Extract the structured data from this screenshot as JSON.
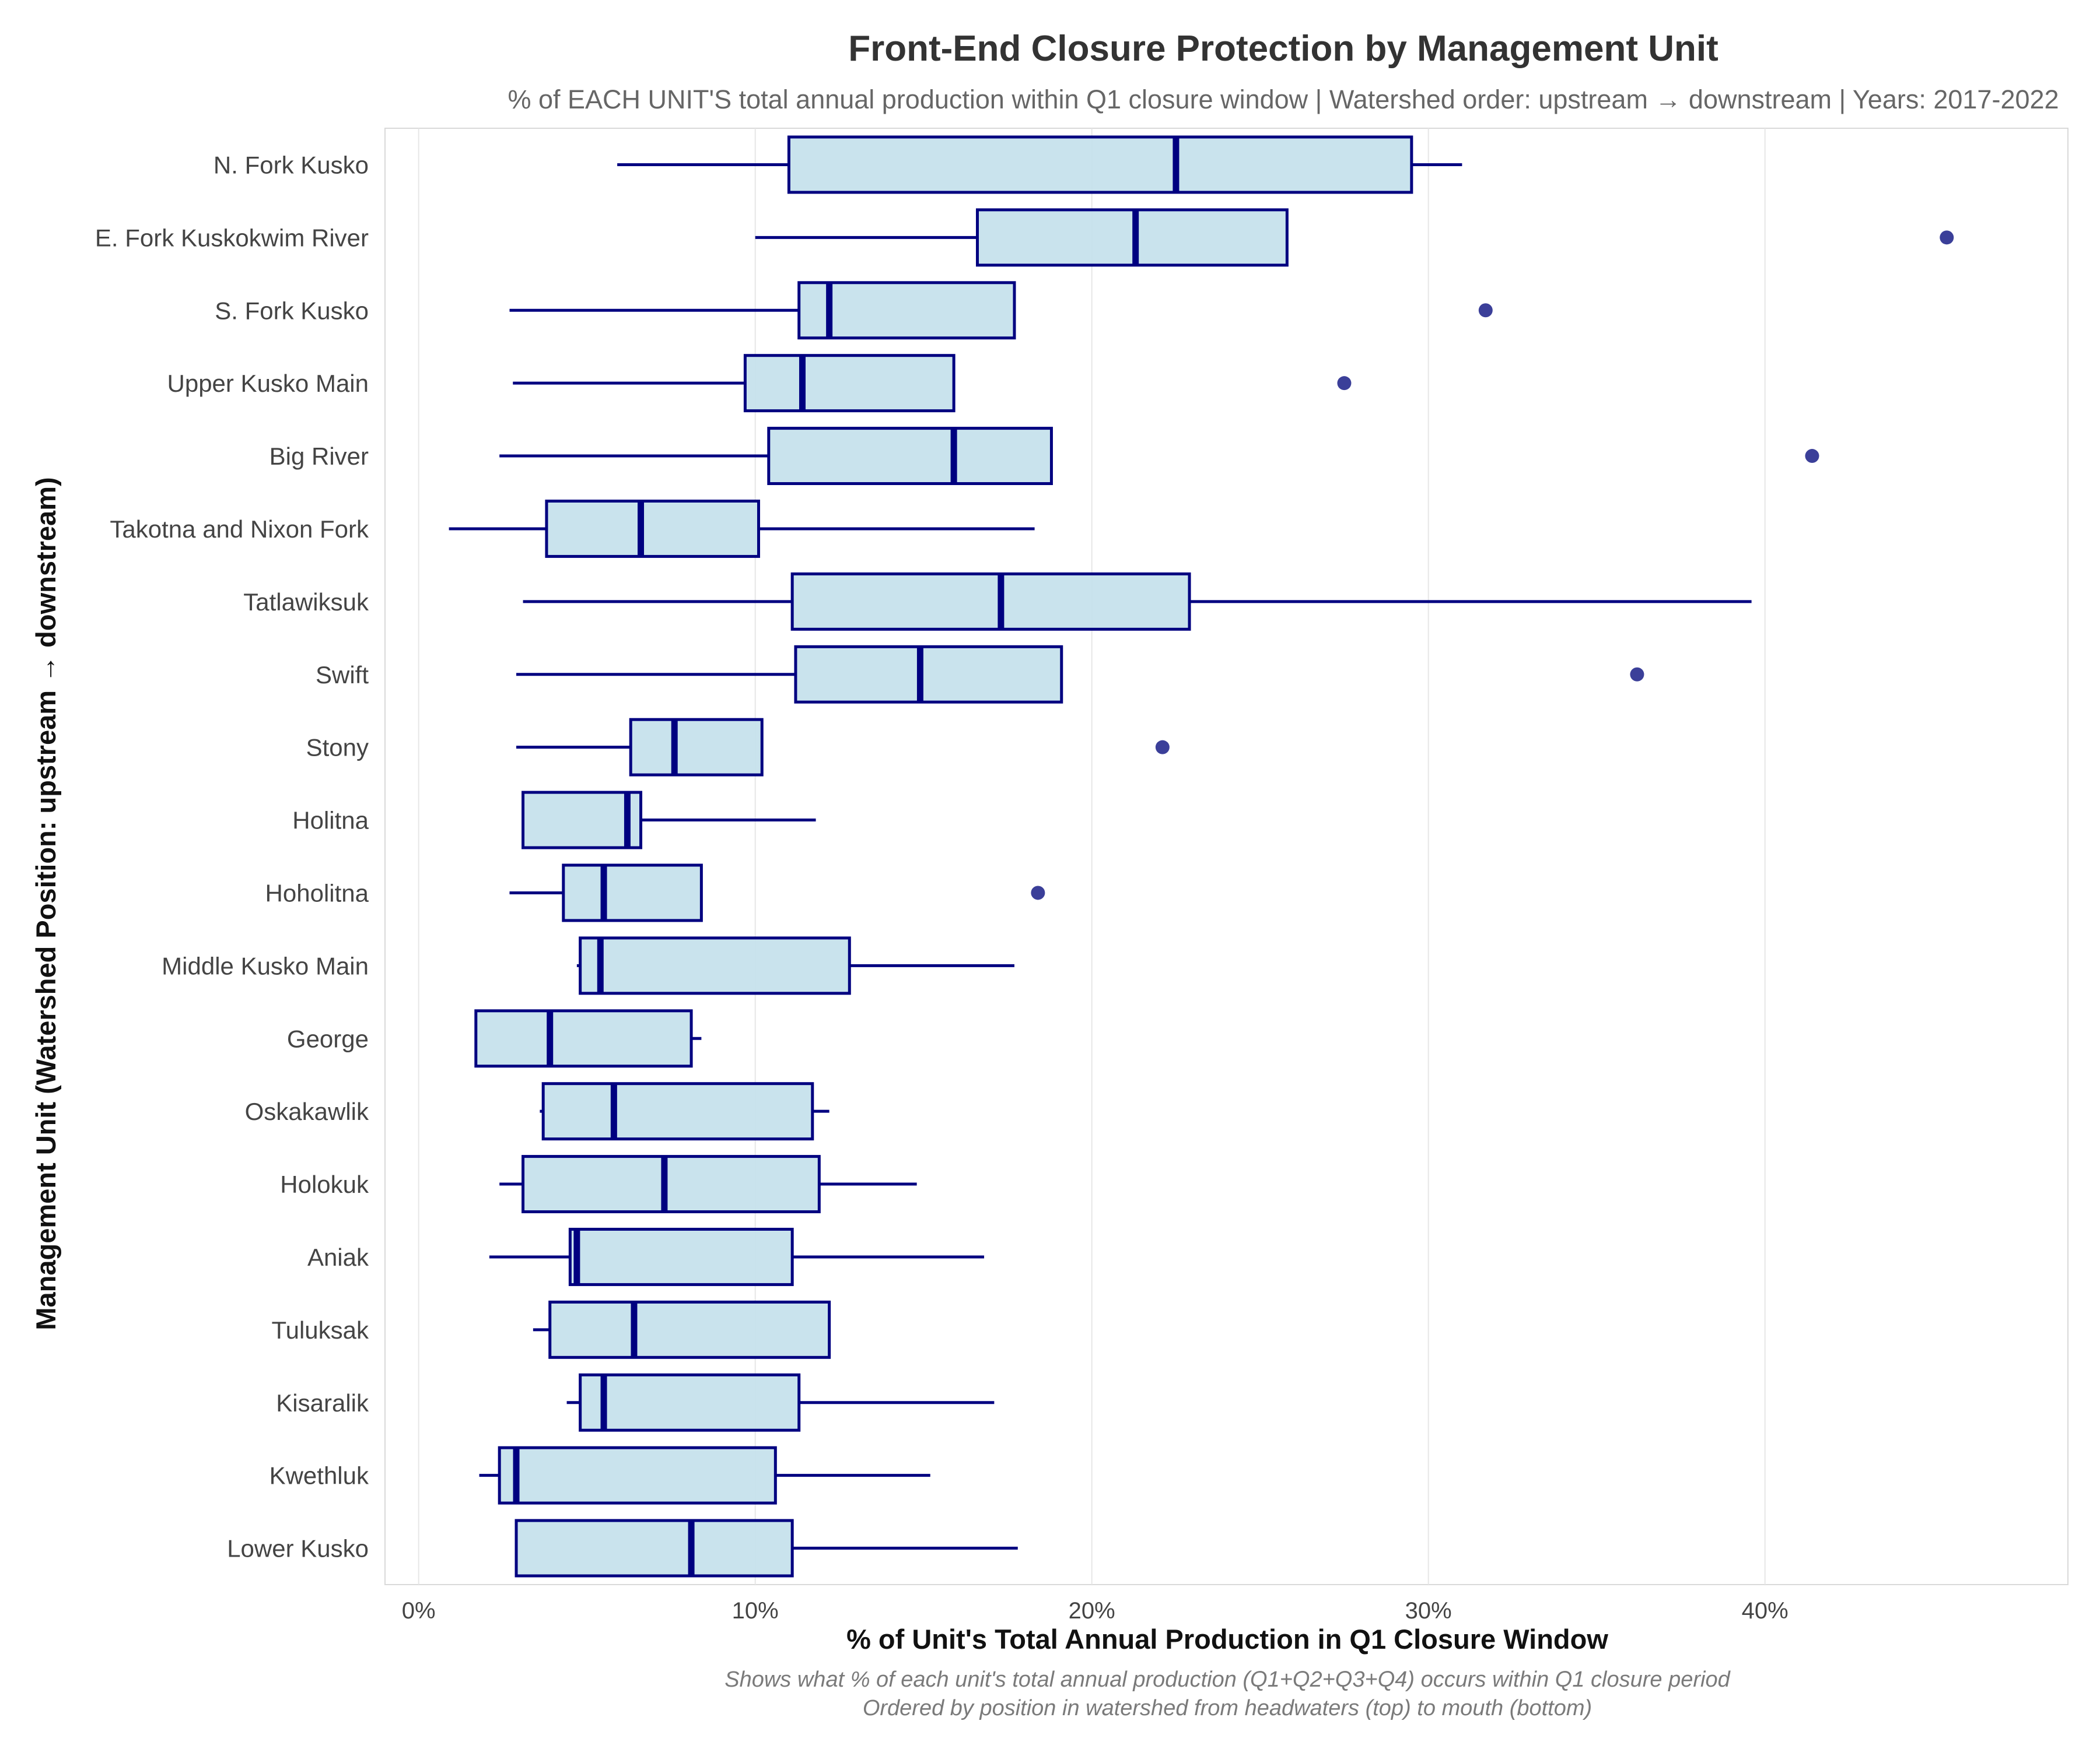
{
  "chart_data": {
    "type": "boxplot",
    "orientation": "horizontal",
    "title": "Front-End Closure Protection by Management Unit",
    "subtitle": "% of EACH UNIT'S total annual production within Q1 closure window | Watershed order: upstream → downstream | Years: 2017-2022",
    "xlabel": "% of Unit's Total Annual Production in Q1 Closure Window",
    "ylabel": "Management Unit (Watershed Position: upstream → downstream)",
    "caption_lines": [
      "Shows what % of each unit's total annual production (Q1+Q2+Q3+Q4) occurs within Q1 closure period",
      "Ordered by position in watershed from headwaters (top) to mouth (bottom)"
    ],
    "xlim": [
      -1,
      49
    ],
    "x_ticks": [
      0,
      10,
      20,
      30,
      40
    ],
    "x_tick_labels": [
      "0%",
      "10%",
      "20%",
      "30%",
      "40%"
    ],
    "grid": "vertical",
    "colors": {
      "box_fill": "#c6e2ec",
      "box_stroke": "#000080",
      "median": "#000080",
      "whisker": "#000080",
      "outlier": "#3b3f99",
      "grid": "#e6e6e6",
      "panel_border": "#d9d9d9"
    },
    "units": [
      {
        "name": "N. Fork Kusko",
        "whisker_low": 5.9,
        "q1": 11.0,
        "median": 22.5,
        "q3": 29.5,
        "whisker_high": 31.0,
        "outliers": []
      },
      {
        "name": "E. Fork Kuskokwim River",
        "whisker_low": 10.0,
        "q1": 16.6,
        "median": 21.3,
        "q3": 25.8,
        "whisker_high": 25.8,
        "outliers": [
          45.4
        ]
      },
      {
        "name": "S. Fork Kusko",
        "whisker_low": 2.7,
        "q1": 11.3,
        "median": 12.2,
        "q3": 17.7,
        "whisker_high": 17.7,
        "outliers": [
          31.7
        ]
      },
      {
        "name": "Upper Kusko Main",
        "whisker_low": 2.8,
        "q1": 9.7,
        "median": 11.4,
        "q3": 15.9,
        "whisker_high": 15.9,
        "outliers": [
          27.5
        ]
      },
      {
        "name": "Big River",
        "whisker_low": 2.4,
        "q1": 10.4,
        "median": 15.9,
        "q3": 18.8,
        "whisker_high": 18.8,
        "outliers": [
          41.4
        ]
      },
      {
        "name": "Takotna and Nixon Fork",
        "whisker_low": 0.9,
        "q1": 3.8,
        "median": 6.6,
        "q3": 10.1,
        "whisker_high": 18.3,
        "outliers": []
      },
      {
        "name": "Tatlawiksuk",
        "whisker_low": 3.1,
        "q1": 11.1,
        "median": 17.3,
        "q3": 22.9,
        "whisker_high": 39.6,
        "outliers": []
      },
      {
        "name": "Swift",
        "whisker_low": 2.9,
        "q1": 11.2,
        "median": 14.9,
        "q3": 19.1,
        "whisker_high": 19.1,
        "outliers": [
          36.2
        ]
      },
      {
        "name": "Stony",
        "whisker_low": 2.9,
        "q1": 6.3,
        "median": 7.6,
        "q3": 10.2,
        "whisker_high": 10.2,
        "outliers": [
          22.1
        ]
      },
      {
        "name": "Holitna",
        "whisker_low": 3.1,
        "q1": 3.1,
        "median": 6.2,
        "q3": 6.6,
        "whisker_high": 11.8,
        "outliers": []
      },
      {
        "name": "Hoholitna",
        "whisker_low": 2.7,
        "q1": 4.3,
        "median": 5.5,
        "q3": 8.4,
        "whisker_high": 8.4,
        "outliers": [
          18.4
        ]
      },
      {
        "name": "Middle Kusko Main",
        "whisker_low": 4.7,
        "q1": 4.8,
        "median": 5.4,
        "q3": 12.8,
        "whisker_high": 17.7,
        "outliers": []
      },
      {
        "name": "George",
        "whisker_low": 1.7,
        "q1": 1.7,
        "median": 3.9,
        "q3": 8.1,
        "whisker_high": 8.4,
        "outliers": []
      },
      {
        "name": "Oskakawlik",
        "whisker_low": 3.6,
        "q1": 3.7,
        "median": 5.8,
        "q3": 11.7,
        "whisker_high": 12.2,
        "outliers": []
      },
      {
        "name": "Holokuk",
        "whisker_low": 2.4,
        "q1": 3.1,
        "median": 7.3,
        "q3": 11.9,
        "whisker_high": 14.8,
        "outliers": []
      },
      {
        "name": "Aniak",
        "whisker_low": 2.1,
        "q1": 4.5,
        "median": 4.7,
        "q3": 11.1,
        "whisker_high": 16.8,
        "outliers": []
      },
      {
        "name": "Tuluksak",
        "whisker_low": 3.4,
        "q1": 3.9,
        "median": 6.4,
        "q3": 12.2,
        "whisker_high": 12.2,
        "outliers": []
      },
      {
        "name": "Kisaralik",
        "whisker_low": 4.4,
        "q1": 4.8,
        "median": 5.5,
        "q3": 11.3,
        "whisker_high": 17.1,
        "outliers": []
      },
      {
        "name": "Kwethluk",
        "whisker_low": 1.8,
        "q1": 2.4,
        "median": 2.9,
        "q3": 10.6,
        "whisker_high": 15.2,
        "outliers": []
      },
      {
        "name": "Lower Kusko",
        "whisker_low": 2.9,
        "q1": 2.9,
        "median": 8.1,
        "q3": 11.1,
        "whisker_high": 17.8,
        "outliers": []
      }
    ]
  }
}
